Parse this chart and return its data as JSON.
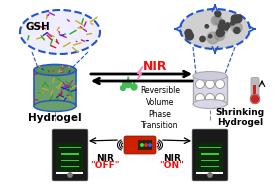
{
  "bg_color": "#ffffff",
  "gsh_label": "GSH",
  "hydrogel_label": "Hydrogel",
  "shrinking_label": "Shrinking\nHydrogel",
  "nir_label": "NIR",
  "reversible_text": "Reversible\nVolume\nPhase\nTransition",
  "arrow_color": "#111111",
  "nir_color": "#ee1111",
  "off_color": "#ee1111",
  "on_color": "#ee1111",
  "ellipse_border": "#2255cc",
  "nir_device_color": "#cc3300",
  "water_drop_color": "#44bb55",
  "lightning_color": "#ff88bb",
  "left_cyl_face": "#6a9e6a",
  "left_cyl_top": "#5a8e5a",
  "right_cyl_face": "#d8d8e8",
  "right_cyl_top": "#ccccdd",
  "left_zoom_bg": "#eeeeff",
  "right_zoom_bg": "#d0d0d0",
  "net_colors": [
    "#cc2222",
    "#2222cc",
    "#22aa22",
    "#aa22aa",
    "#ccaa22",
    "#ffffff"
  ],
  "phone_body": "#1a1a1a",
  "phone_screen": "#0d2a0d",
  "phone_text_line": "#33cc33",
  "thermometer_body": "#bbbbbb",
  "thermometer_fill": "#cc2222"
}
